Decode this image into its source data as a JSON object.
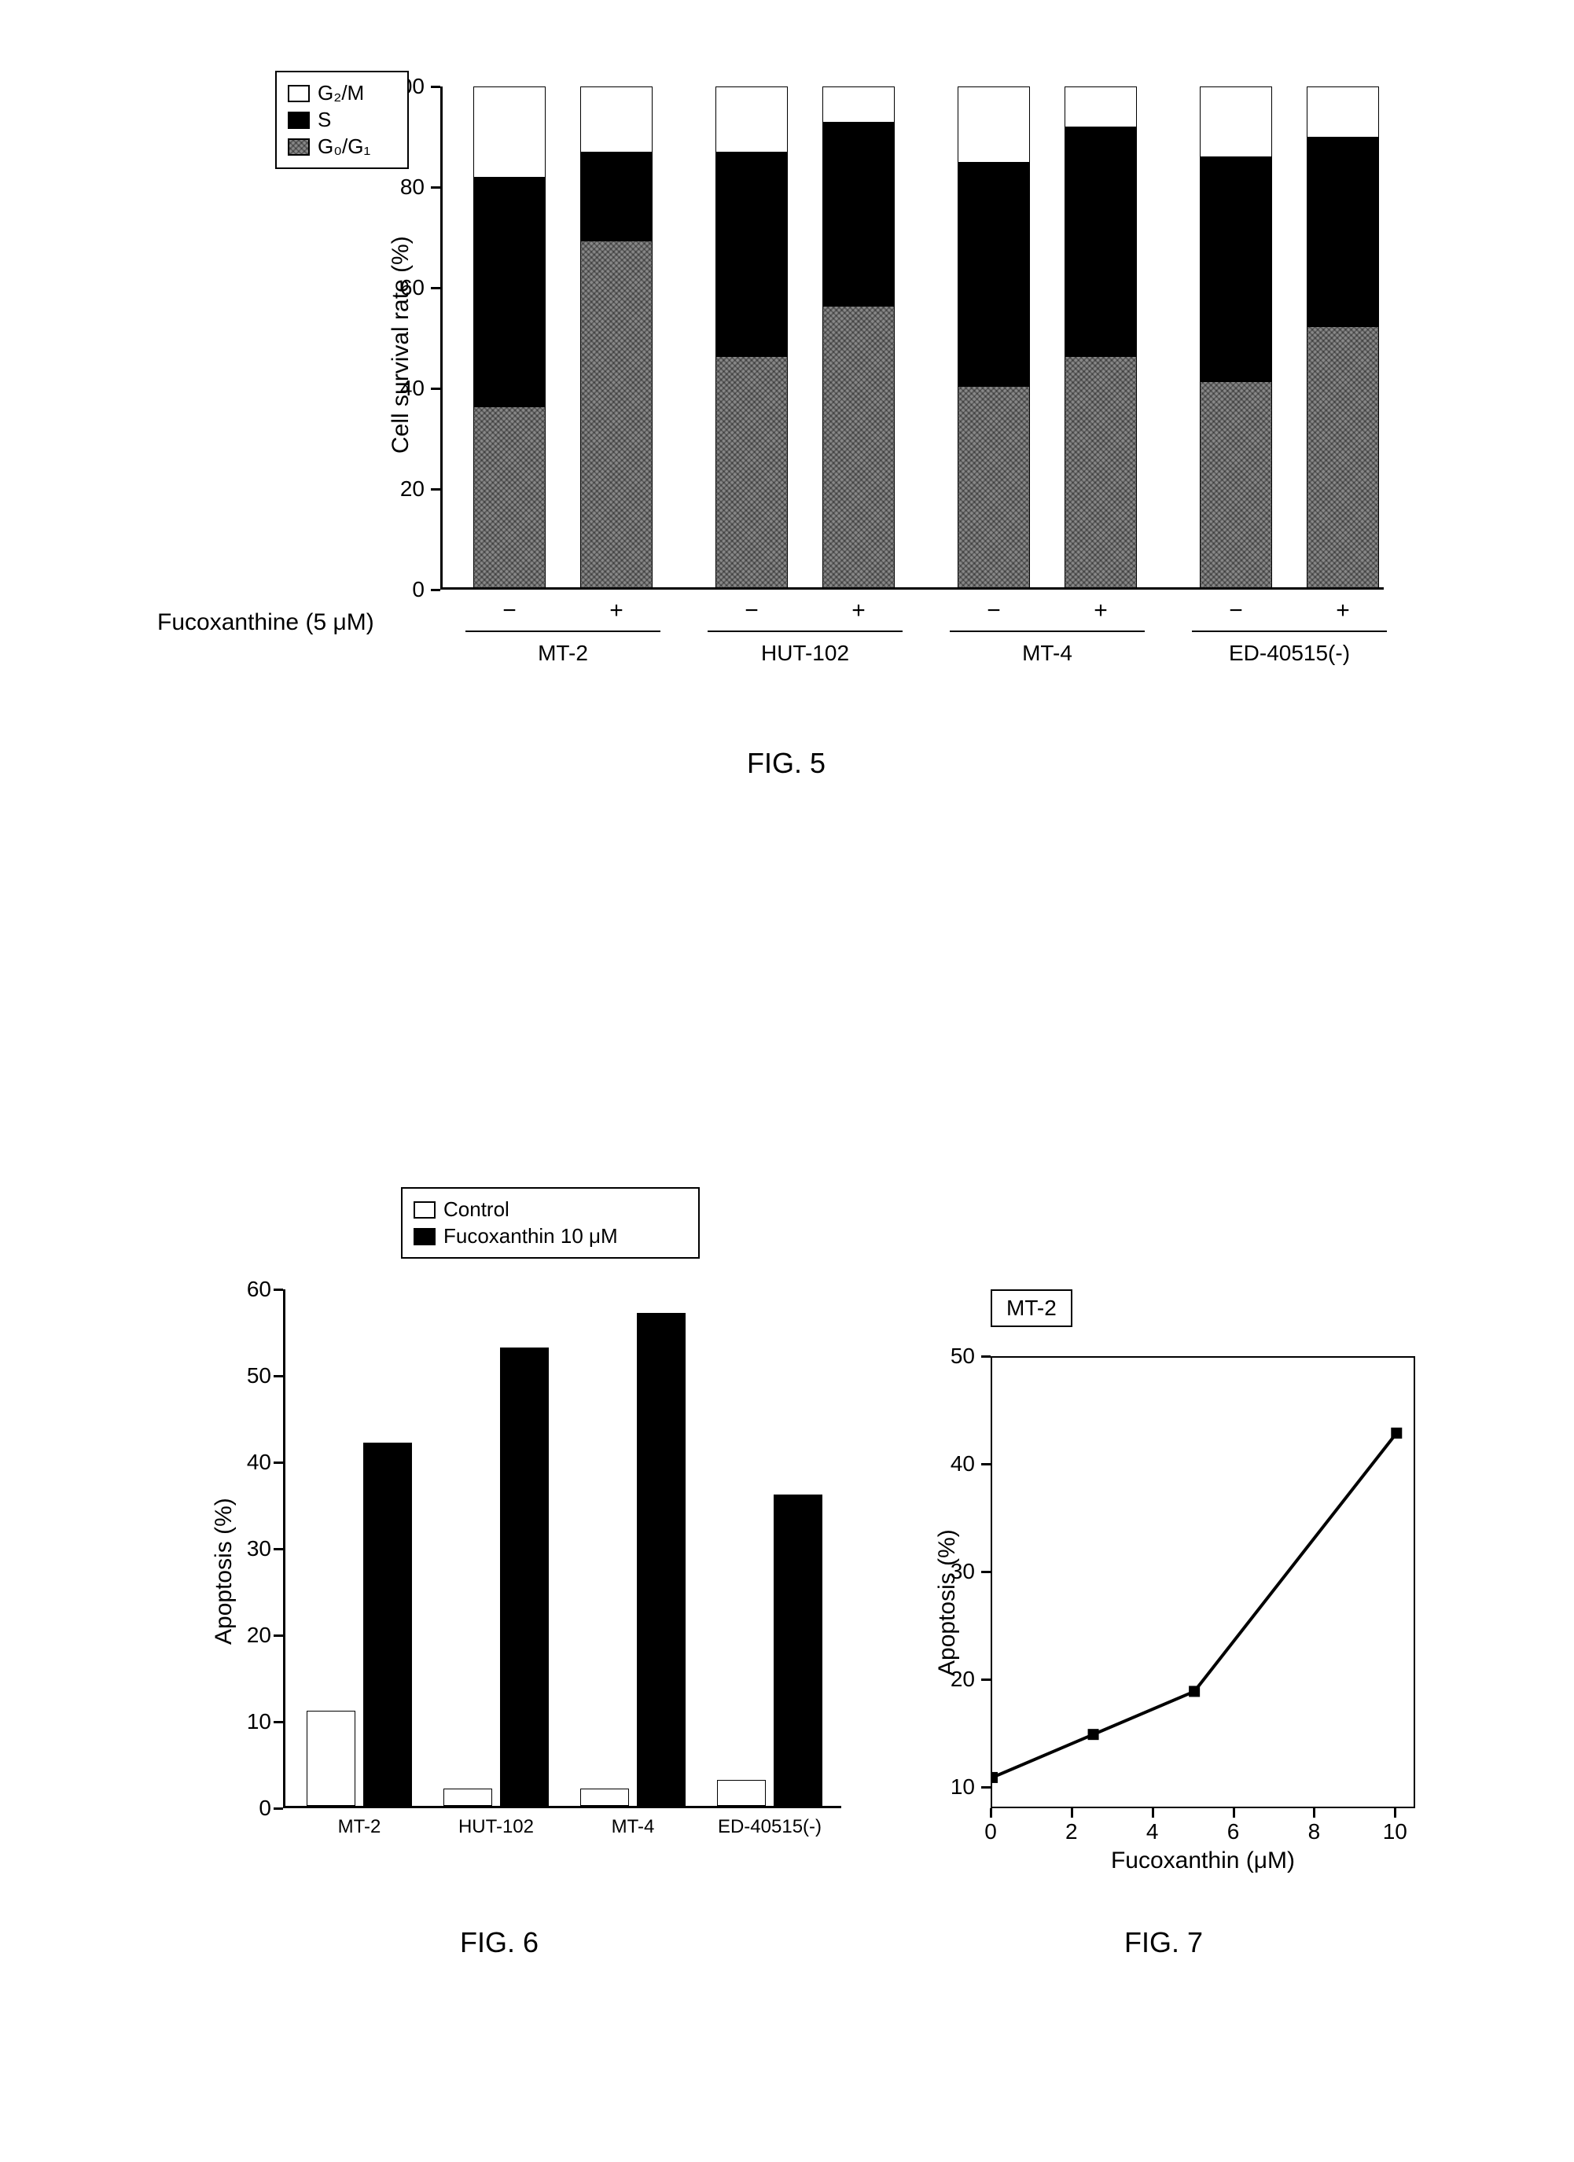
{
  "fig5": {
    "label": "FIG. 5",
    "y_axis_label": "Cell survival rate (%)",
    "x_axis_label": "Fucoxanthine (5 μM)",
    "y_ticks": [
      0,
      20,
      40,
      60,
      80,
      100
    ],
    "legend": [
      {
        "label": "G₂/M",
        "fill": "white"
      },
      {
        "label": "S",
        "fill": "black"
      },
      {
        "label": "G₀/G₁",
        "fill": "texture"
      }
    ],
    "categories": [
      "MT-2",
      "HUT-102",
      "MT-4",
      "ED-40515(-)"
    ],
    "conditions": [
      "−",
      "+"
    ],
    "bars": [
      {
        "cat": "MT-2",
        "cond": "−",
        "g0g1": 36,
        "s": 46,
        "g2m": 18
      },
      {
        "cat": "MT-2",
        "cond": "+",
        "g0g1": 69,
        "s": 18,
        "g2m": 13
      },
      {
        "cat": "HUT-102",
        "cond": "−",
        "g0g1": 46,
        "s": 41,
        "g2m": 13
      },
      {
        "cat": "HUT-102",
        "cond": "+",
        "g0g1": 56,
        "s": 37,
        "g2m": 7
      },
      {
        "cat": "MT-4",
        "cond": "−",
        "g0g1": 40,
        "s": 45,
        "g2m": 15
      },
      {
        "cat": "MT-4",
        "cond": "+",
        "g0g1": 46,
        "s": 46,
        "g2m": 8
      },
      {
        "cat": "ED-40515(-)",
        "cond": "−",
        "g0g1": 41,
        "s": 45,
        "g2m": 14
      },
      {
        "cat": "ED-40515(-)",
        "cond": "+",
        "g0g1": 52,
        "s": 38,
        "g2m": 10
      }
    ],
    "ylim": [
      0,
      100
    ],
    "colors": {
      "g0g1": "#808080",
      "s": "#000000",
      "g2m": "#ffffff",
      "border": "#000000"
    }
  },
  "fig6": {
    "label": "FIG. 6",
    "y_axis_label": "Apoptosis (%)",
    "y_ticks": [
      0,
      10,
      20,
      30,
      40,
      50,
      60
    ],
    "legend": [
      {
        "label": "Control",
        "fill": "white"
      },
      {
        "label": "Fucoxanthin 10 μM",
        "fill": "black"
      }
    ],
    "categories": [
      "MT-2",
      "HUT-102",
      "MT-4",
      "ED-40515(-)"
    ],
    "bars": [
      {
        "cat": "MT-2",
        "series": "Control",
        "value": 11
      },
      {
        "cat": "MT-2",
        "series": "Fucoxanthin",
        "value": 42
      },
      {
        "cat": "HUT-102",
        "series": "Control",
        "value": 2
      },
      {
        "cat": "HUT-102",
        "series": "Fucoxanthin",
        "value": 53
      },
      {
        "cat": "MT-4",
        "series": "Control",
        "value": 2
      },
      {
        "cat": "MT-4",
        "series": "Fucoxanthin",
        "value": 57
      },
      {
        "cat": "ED-40515(-)",
        "series": "Control",
        "value": 3
      },
      {
        "cat": "ED-40515(-)",
        "series": "Fucoxanthin",
        "value": 36
      }
    ],
    "ylim": [
      0,
      60
    ],
    "colors": {
      "control": "#ffffff",
      "treated": "#000000"
    }
  },
  "fig7": {
    "label": "FIG. 7",
    "title_box": "MT-2",
    "y_axis_label": "Apoptosis (%)",
    "x_axis_label": "Fucoxanthin (μM)",
    "y_ticks": [
      10,
      20,
      30,
      40,
      50
    ],
    "x_ticks": [
      0,
      2,
      4,
      6,
      8,
      10
    ],
    "points": [
      {
        "x": 0,
        "y": 11
      },
      {
        "x": 2.5,
        "y": 15
      },
      {
        "x": 5,
        "y": 19
      },
      {
        "x": 10,
        "y": 43
      }
    ],
    "xlim": [
      0,
      10.5
    ],
    "ylim": [
      8,
      50
    ],
    "line_color": "#000000",
    "marker": "square",
    "marker_size": 14,
    "line_width": 4
  }
}
